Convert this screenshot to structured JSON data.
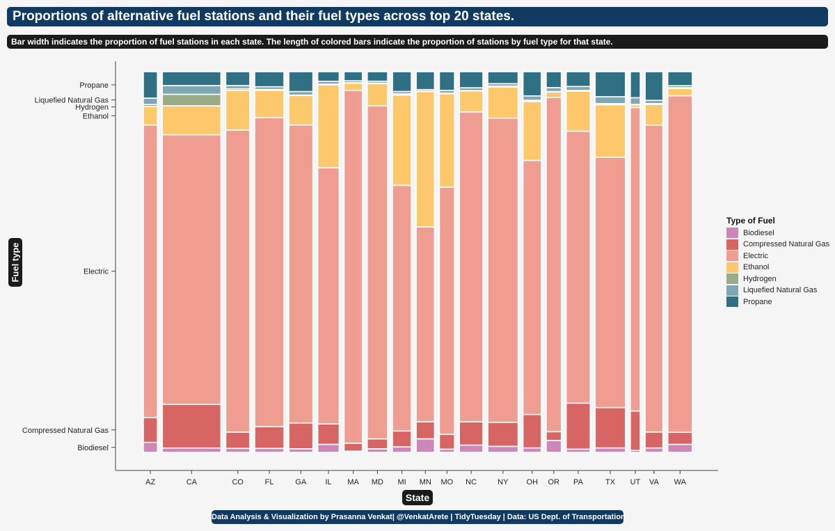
{
  "title": "Proportions of alternative fuel stations and their fuel types across top 20 states.",
  "subtitle": "Bar width indicates the proportion of fuel stations in each state. The length of colored bars indicate the proportion of stations by fuel type for that state.",
  "caption": "Data Analysis & Visualization by Prasanna Venkat| @VenkatArete | TidyTuesday | Data: US Dept. of Transportation",
  "colors": {
    "Biodiesel": "#cc87b8",
    "Compressed Natural Gas": "#d66563",
    "Electric": "#ef9c91",
    "Ethanol": "#fdc76c",
    "Hydrogen": "#9aab87",
    "Liquefied Natural Gas": "#7fa6b3",
    "Propane": "#2f7084"
  },
  "chart_data": {
    "type": "mosaic",
    "title": "Proportions of alternative fuel stations and their fuel types across top 20 states.",
    "xlabel": "State",
    "ylabel": "Fuel type",
    "legend_title": "Type of Fuel",
    "legend_position": "right",
    "grid": false,
    "fuel_types": [
      "Biodiesel",
      "Compressed Natural Gas",
      "Electric",
      "Ethanol",
      "Hydrogen",
      "Liquefied Natural Gas",
      "Propane"
    ],
    "y_axis_labels": [
      "Biodiesel",
      "Compressed Natural Gas",
      "Electric",
      "Ethanol",
      "Hydrogen",
      "Liquefied Natural Gas",
      "Propane"
    ],
    "states": [
      {
        "state": "AZ",
        "station_share": 0.027,
        "proportions": [
          0.025,
          0.062,
          0.73,
          0.046,
          0.005,
          0.016,
          0.066
        ]
      },
      {
        "state": "CA",
        "station_share": 0.112,
        "proportions": [
          0.011,
          0.11,
          0.68,
          0.073,
          0.029,
          0.022,
          0.035
        ]
      },
      {
        "state": "CO",
        "station_share": 0.046,
        "proportions": [
          0.01,
          0.041,
          0.76,
          0.1,
          0.004,
          0.008,
          0.035
        ]
      },
      {
        "state": "FL",
        "station_share": 0.056,
        "proportions": [
          0.01,
          0.055,
          0.78,
          0.069,
          0.002,
          0.007,
          0.038
        ]
      },
      {
        "state": "GA",
        "station_share": 0.046,
        "proportions": [
          0.009,
          0.065,
          0.75,
          0.074,
          0.001,
          0.009,
          0.05
        ]
      },
      {
        "state": "IL",
        "station_share": 0.041,
        "proportions": [
          0.02,
          0.051,
          0.64,
          0.207,
          0.002,
          0.007,
          0.024
        ]
      },
      {
        "state": "MA",
        "station_share": 0.035,
        "proportions": [
          0.003,
          0.02,
          0.89,
          0.018,
          0.001,
          0.005,
          0.023
        ]
      },
      {
        "state": "MD",
        "station_share": 0.039,
        "proportions": [
          0.009,
          0.025,
          0.84,
          0.056,
          0.001,
          0.005,
          0.024
        ]
      },
      {
        "state": "MI",
        "station_share": 0.036,
        "proportions": [
          0.014,
          0.04,
          0.62,
          0.228,
          0.003,
          0.006,
          0.05
        ]
      },
      {
        "state": "MN",
        "station_share": 0.035,
        "proportions": [
          0.034,
          0.043,
          0.49,
          0.34,
          0.001,
          0.004,
          0.045
        ]
      },
      {
        "state": "MO",
        "station_share": 0.029,
        "proportions": [
          0.008,
          0.037,
          0.62,
          0.235,
          0.001,
          0.007,
          0.047
        ]
      },
      {
        "state": "NC",
        "station_share": 0.045,
        "proportions": [
          0.018,
          0.058,
          0.77,
          0.052,
          0.001,
          0.007,
          0.04
        ]
      },
      {
        "state": "NY",
        "station_share": 0.058,
        "proportions": [
          0.015,
          0.06,
          0.76,
          0.078,
          0.002,
          0.006,
          0.03
        ]
      },
      {
        "state": "OH",
        "station_share": 0.035,
        "proportions": [
          0.011,
          0.083,
          0.63,
          0.146,
          0.003,
          0.011,
          0.06
        ]
      },
      {
        "state": "OR",
        "station_share": 0.029,
        "proportions": [
          0.03,
          0.022,
          0.84,
          0.014,
          0.001,
          0.01,
          0.04
        ]
      },
      {
        "state": "PA",
        "station_share": 0.046,
        "proportions": [
          0.008,
          0.115,
          0.68,
          0.1,
          0.002,
          0.01,
          0.037
        ]
      },
      {
        "state": "TX",
        "station_share": 0.058,
        "proportions": [
          0.011,
          0.1,
          0.62,
          0.13,
          0.003,
          0.017,
          0.062
        ]
      },
      {
        "state": "UT",
        "station_share": 0.019,
        "proportions": [
          0.005,
          0.1,
          0.77,
          0.007,
          0.001,
          0.017,
          0.066
        ]
      },
      {
        "state": "VA",
        "station_share": 0.034,
        "proportions": [
          0.011,
          0.04,
          0.77,
          0.052,
          0.002,
          0.008,
          0.072
        ]
      },
      {
        "state": "WA",
        "station_share": 0.047,
        "proportions": [
          0.02,
          0.03,
          0.84,
          0.018,
          0.002,
          0.005,
          0.035
        ]
      }
    ]
  }
}
